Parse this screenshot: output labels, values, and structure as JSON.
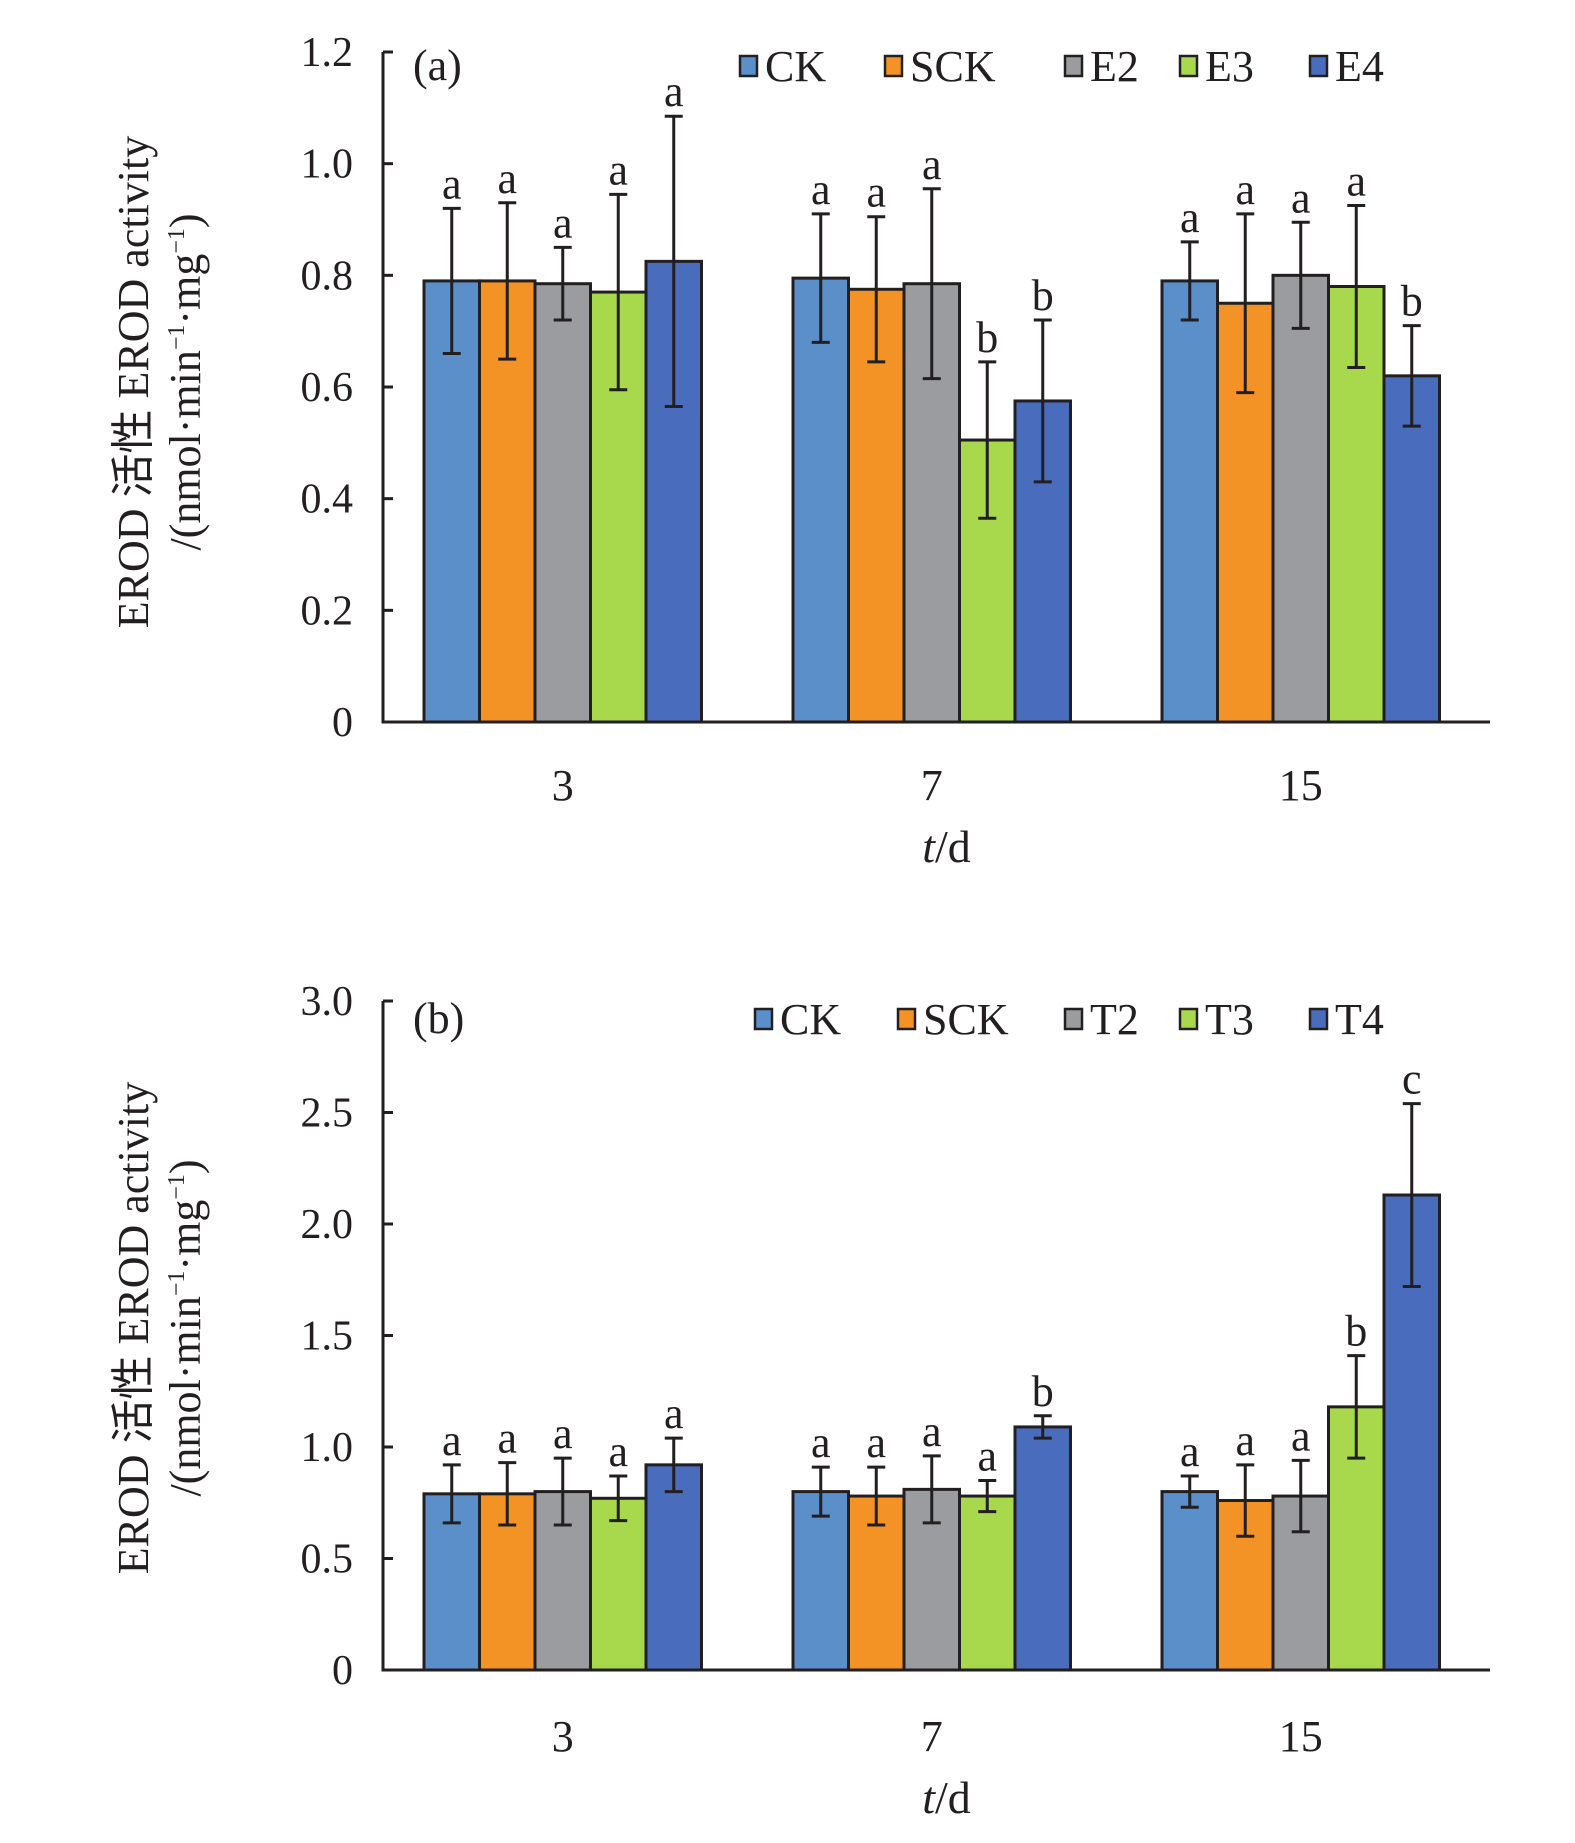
{
  "chart_data": [
    {
      "type": "bar",
      "panel_label": "(a)",
      "title": "",
      "xlabel": "t/d",
      "ylabel_line1": "EROD 活性 EROD activity",
      "ylabel_line2_prefix": "/(nmol·min",
      "ylabel_line2_mid": "·mg",
      "ylabel_sup": "−1",
      "ylabel_line2_suffix": ")",
      "ylim": [
        0,
        1.2
      ],
      "yticks": [
        0,
        0.2,
        0.4,
        0.6,
        0.8,
        1.0,
        1.2
      ],
      "ytick_labels": [
        "0",
        "0.2",
        "0.4",
        "0.6",
        "0.8",
        "1.0",
        "1.2"
      ],
      "categories": [
        "3",
        "7",
        "15"
      ],
      "legend_position": "top-right",
      "grid": false,
      "series": [
        {
          "name": "CK",
          "color": "#5b8fc9",
          "values": [
            0.79,
            0.795,
            0.79
          ],
          "errors": [
            0.13,
            0.115,
            0.07
          ],
          "letters": [
            "a",
            "a",
            "a"
          ]
        },
        {
          "name": "SCK",
          "color": "#f39325",
          "values": [
            0.79,
            0.775,
            0.75
          ],
          "errors": [
            0.14,
            0.13,
            0.16
          ],
          "letters": [
            "a",
            "a",
            "a"
          ]
        },
        {
          "name": "E2",
          "color": "#9b9c9f",
          "values": [
            0.785,
            0.785,
            0.8
          ],
          "errors": [
            0.065,
            0.17,
            0.095
          ],
          "letters": [
            "a",
            "a",
            "a"
          ]
        },
        {
          "name": "E3",
          "color": "#a8d84c",
          "values": [
            0.77,
            0.505,
            0.78
          ],
          "errors": [
            0.175,
            0.14,
            0.145
          ],
          "letters": [
            "a",
            "b",
            "a"
          ]
        },
        {
          "name": "E4",
          "color": "#4a6cbc",
          "values": [
            0.825,
            0.575,
            0.62
          ],
          "errors": [
            0.26,
            0.145,
            0.09
          ],
          "letters": [
            "a",
            "b",
            "b"
          ]
        }
      ]
    },
    {
      "type": "bar",
      "panel_label": "(b)",
      "title": "",
      "xlabel": "t/d",
      "ylabel_line1": "EROD 活性 EROD activity",
      "ylabel_line2_prefix": "/(nmol·min",
      "ylabel_line2_mid": "·mg",
      "ylabel_sup": "−1",
      "ylabel_line2_suffix": ")",
      "ylim": [
        0,
        3.0
      ],
      "yticks": [
        0,
        0.5,
        1.0,
        1.5,
        2.0,
        2.5,
        3.0
      ],
      "ytick_labels": [
        "0",
        "0.5",
        "1.0",
        "1.5",
        "2.0",
        "2.5",
        "3.0"
      ],
      "categories": [
        "3",
        "7",
        "15"
      ],
      "legend_position": "top-right",
      "grid": false,
      "series": [
        {
          "name": "CK",
          "color": "#5b8fc9",
          "values": [
            0.79,
            0.8,
            0.8
          ],
          "errors": [
            0.13,
            0.11,
            0.07
          ],
          "letters": [
            "a",
            "a",
            "a"
          ]
        },
        {
          "name": "SCK",
          "color": "#f39325",
          "values": [
            0.79,
            0.78,
            0.76
          ],
          "errors": [
            0.14,
            0.13,
            0.16
          ],
          "letters": [
            "a",
            "a",
            "a"
          ]
        },
        {
          "name": "T2",
          "color": "#9b9c9f",
          "values": [
            0.8,
            0.81,
            0.78
          ],
          "errors": [
            0.15,
            0.15,
            0.16
          ],
          "letters": [
            "a",
            "a",
            "a"
          ]
        },
        {
          "name": "T3",
          "color": "#a8d84c",
          "values": [
            0.77,
            0.78,
            1.18
          ],
          "errors": [
            0.1,
            0.07,
            0.23
          ],
          "letters": [
            "a",
            "a",
            "b"
          ]
        },
        {
          "name": "T4",
          "color": "#4a6cbc",
          "values": [
            0.92,
            1.09,
            2.13
          ],
          "errors": [
            0.12,
            0.05,
            0.41
          ],
          "letters": [
            "a",
            "b",
            "c"
          ]
        }
      ]
    }
  ]
}
